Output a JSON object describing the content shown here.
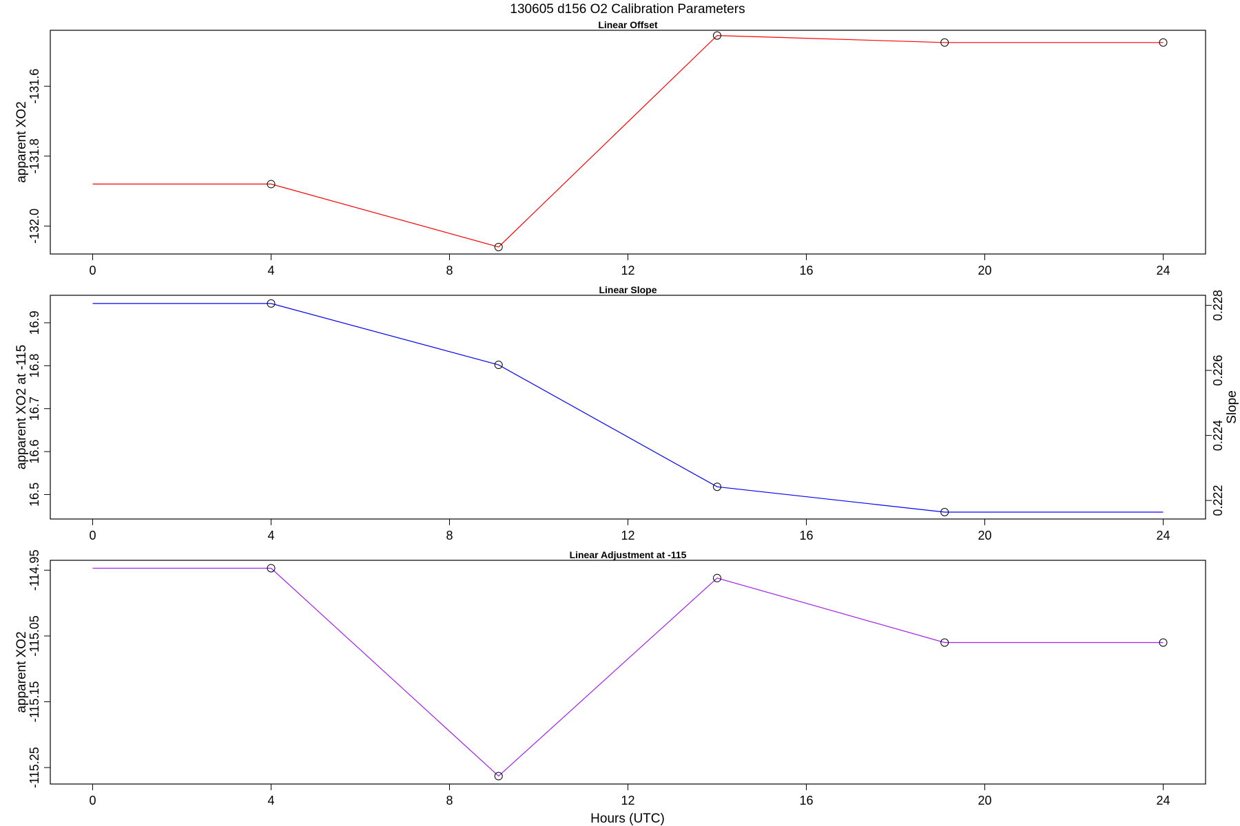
{
  "title": "130605   d156   O2 Calibration Parameters",
  "xlabel": "Hours (UTC)",
  "x_ticks": [
    "0",
    "4",
    "8",
    "12",
    "16",
    "20",
    "24"
  ],
  "chart_data": [
    {
      "type": "line",
      "title": "Linear Offset",
      "xlabel": "",
      "ylabel": "apparent XO2",
      "xlim": [
        -0.95,
        24.95
      ],
      "ylim": [
        -132.08,
        -131.44
      ],
      "x_ticks": [
        0,
        4,
        8,
        12,
        16,
        20,
        24
      ],
      "y_ticks": [
        "-131.6",
        "-131.8",
        "-132.0"
      ],
      "color": "#ff0000",
      "markers": "open-circle",
      "marker_points": [
        4.0,
        9.1,
        14.0,
        19.1,
        24.0
      ],
      "x": [
        0.0,
        4.0,
        9.1,
        14.0,
        19.1,
        24.0
      ],
      "y": [
        -131.88,
        -131.88,
        -132.06,
        -131.455,
        -131.475,
        -131.475
      ]
    },
    {
      "type": "line",
      "title": "Linear Slope",
      "xlabel": "",
      "ylabel": "apparent XO2 at -115",
      "y2label": "Slope",
      "xlim": [
        -0.95,
        24.95
      ],
      "ylim": [
        16.443,
        16.964
      ],
      "y2lim": [
        0.22143,
        0.22831
      ],
      "x_ticks": [
        0,
        4,
        8,
        12,
        16,
        20,
        24
      ],
      "y_ticks": [
        "16.5",
        "16.6",
        "16.7",
        "16.8",
        "16.9"
      ],
      "y2_ticks": [
        "0.222",
        "0.224",
        "0.226",
        "0.228"
      ],
      "color": "#0000ff",
      "markers": "open-circle",
      "marker_points": [
        4.0,
        9.1,
        14.0,
        19.1
      ],
      "x": [
        0.0,
        4.0,
        9.1,
        14.0,
        19.1,
        24.0
      ],
      "y": [
        16.945,
        16.945,
        16.802,
        16.518,
        16.459,
        16.459
      ]
    },
    {
      "type": "line",
      "title": "Linear Adjustment at -115",
      "xlabel": "Hours (UTC)",
      "ylabel": "apparent XO2",
      "xlim": [
        -0.95,
        24.95
      ],
      "ylim": [
        -115.275,
        -114.935
      ],
      "x_ticks": [
        0,
        4,
        8,
        12,
        16,
        20,
        24
      ],
      "y_ticks": [
        "-114.95",
        "-115.05",
        "-115.15",
        "-115.25"
      ],
      "color": "#a020f0",
      "markers": "open-circle",
      "marker_points": [
        4.0,
        9.1,
        14.0,
        19.1,
        24.0
      ],
      "x": [
        0.0,
        4.0,
        9.1,
        14.0,
        19.1,
        24.0
      ],
      "y": [
        -114.947,
        -114.947,
        -115.263,
        -114.962,
        -115.06,
        -115.06
      ]
    }
  ]
}
